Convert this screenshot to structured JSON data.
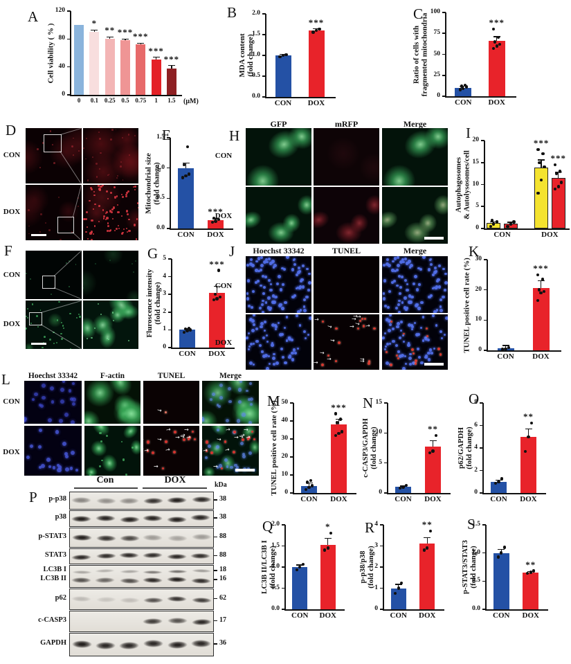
{
  "figure": {
    "background": "#ffffff"
  },
  "colors": {
    "blue": "#2451a5",
    "red": "#e8232a",
    "yellow": "#f4e32f",
    "axis": "#111111"
  },
  "panels": {
    "A": {
      "letter": "A"
    },
    "B": {
      "letter": "B"
    },
    "C": {
      "letter": "C"
    },
    "D": {
      "letter": "D"
    },
    "E": {
      "letter": "E"
    },
    "F": {
      "letter": "F"
    },
    "G": {
      "letter": "G"
    },
    "H": {
      "letter": "H"
    },
    "I": {
      "letter": "I"
    },
    "J": {
      "letter": "J"
    },
    "K": {
      "letter": "K"
    },
    "L": {
      "letter": "L"
    },
    "M": {
      "letter": "M"
    },
    "N": {
      "letter": "N"
    },
    "O": {
      "letter": "O"
    },
    "P": {
      "letter": "P"
    },
    "Q": {
      "letter": "Q"
    },
    "R": {
      "letter": "R"
    },
    "S": {
      "letter": "S"
    }
  },
  "micro": {
    "D": {
      "row_labels": [
        "CON",
        "DOX"
      ]
    },
    "F": {
      "row_labels": [
        "CON",
        "DOX"
      ]
    },
    "H": {
      "col_headers": [
        "GFP",
        "mRFP",
        "Merge"
      ],
      "row_labels": [
        "CON",
        "DOX"
      ]
    },
    "J": {
      "col_headers": [
        "Hoechst 33342",
        "TUNEL",
        "Merge"
      ],
      "row_labels": [
        "CON",
        "DOX"
      ]
    },
    "L": {
      "col_headers": [
        "Hoechst 33342",
        "F-actin",
        "TUNEL",
        "Merge"
      ],
      "row_labels": [
        "CON",
        "DOX"
      ]
    }
  },
  "blot": {
    "group_labels": [
      "Con",
      "DOX"
    ],
    "unit_label": "kDa",
    "rows": [
      {
        "labels": [
          "p-p38"
        ],
        "markers": [
          "38"
        ],
        "bands": [
          [
            0.45,
            0.4,
            0.42,
            0.85,
            0.95,
            0.9
          ]
        ]
      },
      {
        "labels": [
          "p38"
        ],
        "markers": [
          "38"
        ],
        "bands": [
          [
            0.95,
            0.92,
            0.94,
            0.93,
            0.95,
            0.92
          ]
        ]
      },
      {
        "labels": [
          "p-STAT3"
        ],
        "markers": [
          "88"
        ],
        "bands": [
          [
            0.95,
            0.85,
            0.75,
            0.35,
            0.3,
            0.35
          ]
        ]
      },
      {
        "labels": [
          "STAT3"
        ],
        "markers": [
          "88"
        ],
        "bands": [
          [
            0.9,
            0.88,
            0.9,
            0.88,
            0.9,
            0.88
          ]
        ]
      },
      {
        "labels": [
          "LC3B I",
          "LC3B II"
        ],
        "markers": [
          "18",
          "16"
        ],
        "bands": [
          [
            0.3,
            0.25,
            0.3,
            0.5,
            0.55,
            0.35
          ],
          [
            0.7,
            0.6,
            0.72,
            0.9,
            0.95,
            0.88
          ]
        ]
      },
      {
        "labels": [
          "p62"
        ],
        "markers": [
          "62"
        ],
        "bands": [
          [
            0.2,
            0.15,
            0.18,
            0.7,
            0.85,
            0.8
          ]
        ]
      },
      {
        "labels": [
          "c-CASP3"
        ],
        "markers": [
          "17"
        ],
        "bands": [
          [
            0.05,
            0.04,
            0.05,
            0.8,
            0.7,
            0.9
          ]
        ]
      },
      {
        "labels": [
          "GAPDH"
        ],
        "markers": [
          "36"
        ],
        "bands": [
          [
            0.95,
            0.9,
            0.9,
            0.9,
            0.93,
            0.9
          ]
        ]
      }
    ]
  },
  "chart_data": [
    {
      "id": "A",
      "type": "bar",
      "ylabel": [
        "Cell viability ( % )"
      ],
      "xlabel": "(μM)",
      "categories": [
        "0",
        "0.1",
        "0.25",
        "0.5",
        "0.75",
        "1",
        "1.5"
      ],
      "values": [
        100,
        90,
        80,
        78,
        72,
        51,
        38
      ],
      "errors": [
        0,
        3,
        3,
        2,
        2,
        3,
        4
      ],
      "sig": [
        "",
        "*",
        "**",
        "***",
        "***",
        "***",
        "***"
      ],
      "bar_colors": [
        "#8ab4dc",
        "#f8dede",
        "#f3b5b5",
        "#ef9595",
        "#e76a6a",
        "#e42127",
        "#8e2023"
      ],
      "ylim": [
        0,
        120
      ],
      "yticks": [
        "0",
        "40",
        "80",
        "120"
      ]
    },
    {
      "id": "B",
      "type": "bar",
      "ylabel": [
        "MDA content",
        "(fold change)"
      ],
      "categories": [
        "CON",
        "DOX"
      ],
      "values": [
        1.0,
        1.6
      ],
      "errors": [
        0.02,
        0.04
      ],
      "sig": [
        "",
        "***"
      ],
      "dots": [
        [
          0.97,
          1.0,
          1.02
        ],
        [
          1.56,
          1.6,
          1.63
        ]
      ],
      "bar_colors": [
        "blue",
        "red"
      ],
      "ylim": [
        0,
        2
      ],
      "yticks": [
        "0.0",
        "0.5",
        "1.0",
        "1.5",
        "2.0"
      ]
    },
    {
      "id": "C",
      "type": "bar",
      "ylabel": [
        "Ratio of cells with",
        "fragmented mitochondria"
      ],
      "categories": [
        "CON",
        "DOX"
      ],
      "values": [
        10,
        66
      ],
      "errors": [
        2,
        5
      ],
      "sig": [
        "",
        "***"
      ],
      "dots": [
        [
          8,
          9,
          11,
          12,
          13
        ],
        [
          57,
          60,
          62,
          65,
          70,
          80
        ]
      ],
      "bar_colors": [
        "blue",
        "red"
      ],
      "ylim": [
        0,
        100
      ],
      "yticks": [
        "0",
        "25",
        "50",
        "75",
        "100"
      ]
    },
    {
      "id": "E",
      "type": "bar",
      "ylabel": [
        "Mitochondrial size",
        "(fold change)"
      ],
      "categories": [
        "CON",
        "DOX"
      ],
      "values": [
        1.0,
        0.14
      ],
      "errors": [
        0.08,
        0.02
      ],
      "sig": [
        "",
        "***"
      ],
      "dots": [
        [
          0.84,
          0.87,
          0.9,
          1.05,
          1.35
        ],
        [
          0.1,
          0.12,
          0.15,
          0.17
        ]
      ],
      "bar_colors": [
        "blue",
        "red"
      ],
      "ylim": [
        0,
        1.5
      ],
      "yticks": [
        "0.0",
        "0.5",
        "1.0",
        "1.5"
      ]
    },
    {
      "id": "G",
      "type": "bar",
      "ylabel": [
        "Fluroscence intensity",
        "(fold change)"
      ],
      "categories": [
        "CON",
        "DOX"
      ],
      "values": [
        1.0,
        3.1
      ],
      "errors": [
        0.07,
        0.35
      ],
      "sig": [
        "",
        "***"
      ],
      "dots": [
        [
          0.85,
          0.95,
          1.0,
          1.05,
          1.1
        ],
        [
          2.7,
          2.75,
          2.85,
          3.0,
          4.35
        ]
      ],
      "bar_colors": [
        "blue",
        "red"
      ],
      "ylim": [
        0,
        5
      ],
      "yticks": [
        "0",
        "1",
        "2",
        "3",
        "4",
        "5"
      ]
    },
    {
      "id": "I",
      "type": "grouped-bar",
      "ylabel": [
        "Autophagosomes",
        "& Autolysosomes/cell"
      ],
      "categories": [
        "CON",
        "DOX"
      ],
      "series": [
        {
          "name": "Autophagosomes",
          "color": "yellow",
          "values": [
            1.2,
            13.8
          ],
          "errors": [
            0.3,
            1.8
          ],
          "sig": [
            "",
            "***"
          ],
          "dots": [
            [
              0.5,
              1.0,
              1.5,
              1.8
            ],
            [
              8,
              11,
              14,
              15,
              17,
              18
            ]
          ]
        },
        {
          "name": "Autolysosomes",
          "color": "red",
          "values": [
            1.1,
            11.5
          ],
          "errors": [
            0.3,
            1.3
          ],
          "sig": [
            "",
            "***"
          ],
          "dots": [
            [
              0.5,
              1.0,
              1.5
            ],
            [
              9,
              9.5,
              10.5,
              12.5,
              13,
              14.5
            ]
          ]
        }
      ],
      "ylim": [
        0,
        20
      ],
      "yticks": [
        "0",
        "5",
        "10",
        "15",
        "20"
      ]
    },
    {
      "id": "K",
      "type": "bar",
      "ylabel": [
        "TUNEL positive cell rate (%)"
      ],
      "categories": [
        "CON",
        "DOX"
      ],
      "values": [
        0.8,
        20.5
      ],
      "errors": [
        0.8,
        2.5
      ],
      "sig": [
        "",
        "***"
      ],
      "dots": [
        [
          0.3,
          0.5,
          0.9
        ],
        [
          16.5,
          19,
          19.5,
          20,
          23.5,
          25
        ]
      ],
      "bar_colors": [
        "blue",
        "red"
      ],
      "ylim": [
        0,
        30
      ],
      "yticks": [
        "0",
        "10",
        "20",
        "30"
      ]
    },
    {
      "id": "M",
      "type": "bar",
      "ylabel": [
        "TUNEL positive cell rate (%)"
      ],
      "categories": [
        "CON",
        "DOX"
      ],
      "values": [
        4,
        38
      ],
      "errors": [
        1.5,
        3
      ],
      "sig": [
        "",
        "***"
      ],
      "dots": [
        [
          2,
          3,
          4,
          6,
          7
        ],
        [
          32,
          33,
          34,
          39,
          41,
          44
        ]
      ],
      "bar_colors": [
        "blue",
        "red"
      ],
      "ylim": [
        0,
        50
      ],
      "yticks": [
        "0",
        "10",
        "20",
        "30",
        "40",
        "50"
      ]
    },
    {
      "id": "N",
      "type": "bar",
      "ylabel": [
        "c-CASP3/GAPDH",
        "(fold change)"
      ],
      "categories": [
        "CON",
        "DOX"
      ],
      "values": [
        1.0,
        7.7
      ],
      "errors": [
        0.15,
        1.0
      ],
      "sig": [
        "",
        "**"
      ],
      "dots": [
        [
          0.8,
          1.0,
          1.3
        ],
        [
          6.7,
          7.0,
          9.6
        ]
      ],
      "bar_colors": [
        "blue",
        "red"
      ],
      "ylim": [
        0,
        15
      ],
      "yticks": [
        "0",
        "5",
        "10",
        "15"
      ]
    },
    {
      "id": "O",
      "type": "bar",
      "ylabel": [
        "p62/GAPDH",
        "(fold change)"
      ],
      "categories": [
        "CON",
        "DOX"
      ],
      "values": [
        1.0,
        5.0
      ],
      "errors": [
        0.15,
        0.7
      ],
      "sig": [
        "",
        "**"
      ],
      "dots": [
        [
          0.85,
          1.0,
          1.25
        ],
        [
          3.7,
          5.0,
          6.2
        ]
      ],
      "bar_colors": [
        "blue",
        "red"
      ],
      "ylim": [
        0,
        8
      ],
      "yticks": [
        "0",
        "2",
        "4",
        "6",
        "8"
      ]
    },
    {
      "id": "Q",
      "type": "bar",
      "ylabel": [
        "LC3B II/LC3B I",
        "(fold change)"
      ],
      "categories": [
        "CON",
        "DOX"
      ],
      "values": [
        1.0,
        1.53
      ],
      "errors": [
        0.05,
        0.15
      ],
      "sig": [
        "",
        "*"
      ],
      "dots": [
        [
          0.93,
          1.0,
          1.07
        ],
        [
          1.4,
          1.45,
          1.8
        ]
      ],
      "bar_colors": [
        "blue",
        "red"
      ],
      "ylim": [
        0,
        2
      ],
      "yticks": [
        "0.0",
        "0.5",
        "1.0",
        "1.5",
        "2.0"
      ]
    },
    {
      "id": "R",
      "type": "bar",
      "ylabel": [
        "p-p38/p38",
        "(fold change)"
      ],
      "categories": [
        "CON",
        "DOX"
      ],
      "values": [
        1.0,
        3.1
      ],
      "errors": [
        0.18,
        0.3
      ],
      "sig": [
        "",
        "**"
      ],
      "dots": [
        [
          0.75,
          1.0,
          1.25
        ],
        [
          2.8,
          2.9,
          3.7
        ]
      ],
      "bar_colors": [
        "blue",
        "red"
      ],
      "ylim": [
        0,
        4
      ],
      "yticks": [
        "0",
        "1",
        "2",
        "3",
        "4"
      ]
    },
    {
      "id": "S",
      "type": "bar",
      "ylabel": [
        "p-STAT3/STAT3",
        "(fold change)"
      ],
      "categories": [
        "CON",
        "DOX"
      ],
      "values": [
        1.0,
        0.65
      ],
      "errors": [
        0.06,
        0.02
      ],
      "sig": [
        "",
        "**"
      ],
      "dots": [
        [
          0.93,
          1.0,
          1.1
        ],
        [
          0.64,
          0.66,
          0.68
        ]
      ],
      "bar_colors": [
        "blue",
        "red"
      ],
      "ylim": [
        0,
        1.5
      ],
      "yticks": [
        "0.0",
        "0.5",
        "1.0",
        "1.5"
      ]
    }
  ]
}
